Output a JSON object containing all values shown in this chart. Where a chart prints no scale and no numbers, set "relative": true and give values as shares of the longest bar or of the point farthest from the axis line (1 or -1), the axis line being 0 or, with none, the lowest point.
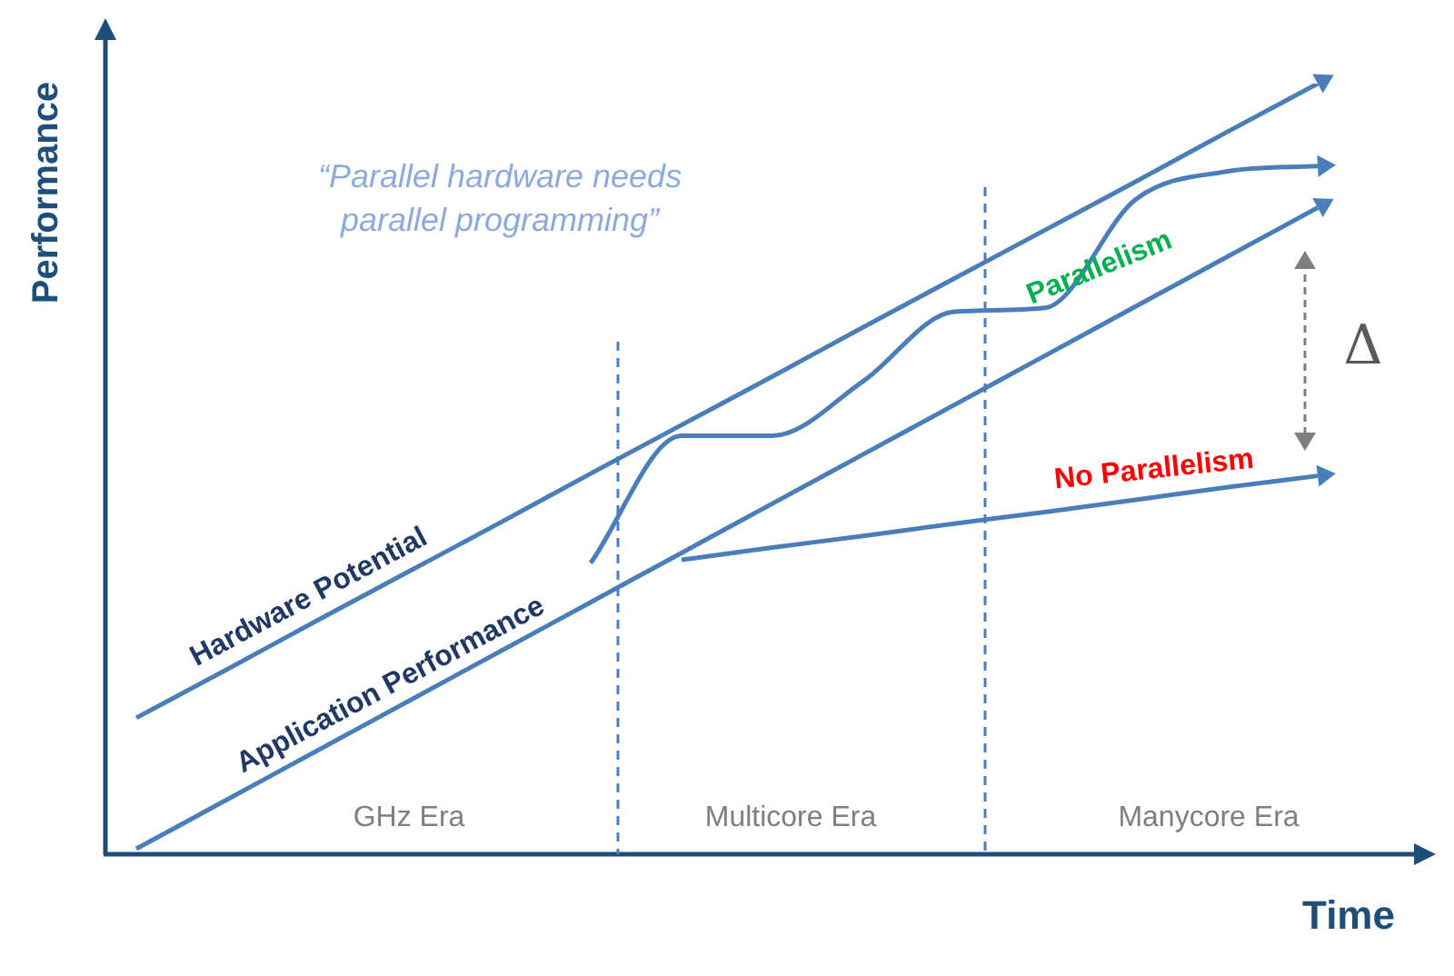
{
  "chart_data": {
    "type": "line",
    "relative": true,
    "xlabel": "Time",
    "ylabel": "Performance",
    "legend": false,
    "marker": "none",
    "tick_labels": false,
    "categories": [
      null,
      null,
      null,
      null,
      null,
      null,
      null,
      null,
      null,
      null,
      null,
      null,
      null,
      null
    ],
    "series": [
      {
        "name": "Hardware Potential",
        "color": "#4a7ebb",
        "values": [
          0.177,
          0.24,
          0.304,
          0.367,
          0.43,
          0.494,
          0.557,
          0.62,
          0.684,
          0.747,
          0.81,
          0.873,
          0.937,
          1
        ]
      },
      {
        "name": "Application Performance",
        "color": "#4a7ebb",
        "values": [
          0.007,
          0.071,
          0.135,
          0.199,
          0.263,
          0.327,
          0.391,
          0.455,
          0.519,
          0.583,
          0.647,
          0.711,
          0.775,
          0.839
        ]
      },
      {
        "name": "Parallelism",
        "color": "#4a7ebb",
        "values": [
          null,
          null,
          null,
          null,
          null,
          0.378,
          0.543,
          0.543,
          0.614,
          0.704,
          0.709,
          0.85,
          0.886,
          0.893
        ]
      },
      {
        "name": "No Parallelism",
        "color": "#4a7ebb",
        "values": [
          null,
          null,
          null,
          null,
          null,
          null,
          0.382,
          0.398,
          0.413,
          0.429,
          0.444,
          0.46,
          0.476,
          0.491
        ]
      }
    ],
    "annotations": [
      "“Parallel hardware needs\nparallel programming”",
      "GHz Era",
      "Multicore Era",
      "Manycore Era",
      "Δ"
    ]
  }
}
